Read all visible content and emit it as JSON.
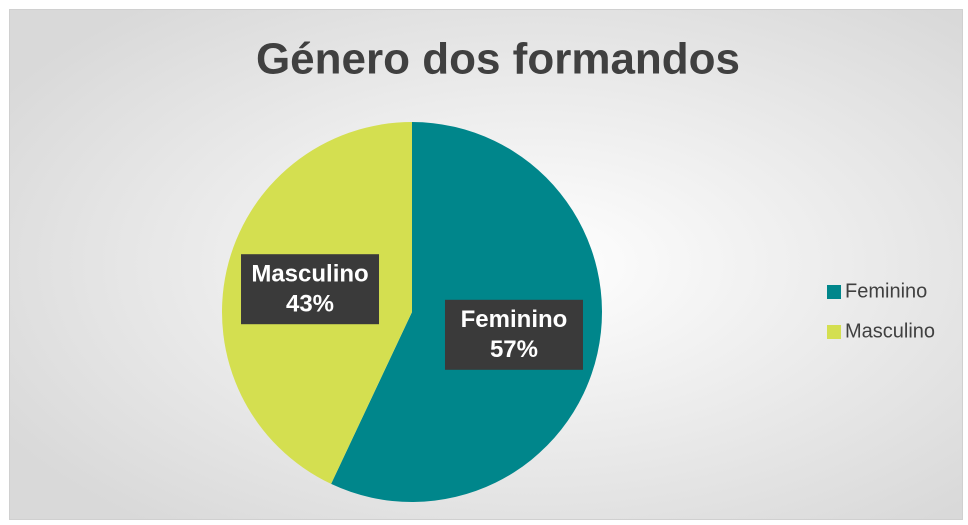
{
  "chart_data": {
    "type": "pie",
    "title": "Género dos formandos",
    "categories": [
      "Feminino",
      "Masculino"
    ],
    "values": [
      57,
      43
    ],
    "value_labels": [
      "57%",
      "43%"
    ],
    "colors": [
      "#00868b",
      "#d4df50"
    ],
    "legend": "right"
  }
}
